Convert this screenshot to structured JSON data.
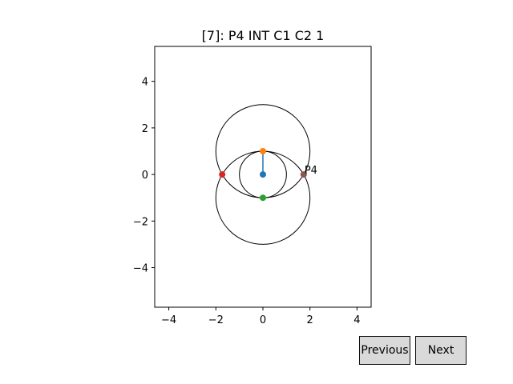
{
  "chart_data": {
    "type": "scatter",
    "title": "[7]: P4 INT C1 C2 1",
    "xlim": [
      -4.6,
      4.6
    ],
    "ylim": [
      -5.7,
      5.5
    ],
    "xticks": [
      -4,
      -2,
      0,
      2,
      4
    ],
    "yticks": [
      -4,
      -2,
      0,
      2,
      4
    ],
    "xtick_labels": [
      "−4",
      "−2",
      "0",
      "2",
      "4"
    ],
    "ytick_labels": [
      "−4",
      "−2",
      "0",
      "2",
      "4"
    ],
    "grid": false,
    "points": [
      {
        "x": 0,
        "y": 0,
        "color": "#1f77b4",
        "label": ""
      },
      {
        "x": 0,
        "y": 1,
        "color": "#ff7f0e",
        "label": ""
      },
      {
        "x": 0,
        "y": -1,
        "color": "#2ca02c",
        "label": ""
      },
      {
        "x": -1.732,
        "y": 0,
        "color": "#d62728",
        "label": ""
      },
      {
        "x": 1.732,
        "y": 0,
        "color": "#8c564b",
        "label": "P4"
      }
    ],
    "circles": [
      {
        "cx": 0,
        "cy": 0,
        "r": 1,
        "color": "#000000"
      },
      {
        "cx": 0,
        "cy": 1,
        "r": 2,
        "color": "#000000"
      },
      {
        "cx": 0,
        "cy": -1,
        "r": 2,
        "color": "#000000"
      }
    ],
    "segments": [
      {
        "x": [
          0,
          0
        ],
        "y": [
          0,
          1
        ],
        "color": "#1f77b4"
      }
    ]
  },
  "buttons": {
    "previous": "Previous",
    "next": "Next"
  }
}
